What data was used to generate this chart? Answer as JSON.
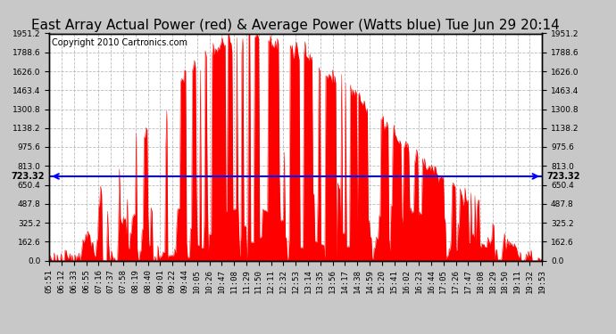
{
  "title": "East Array Actual Power (red) & Average Power (Watts blue) Tue Jun 29 20:14",
  "copyright_text": "Copyright 2010 Cartronics.com",
  "avg_power": 723.32,
  "y_ticks": [
    0.0,
    162.6,
    325.2,
    487.8,
    650.4,
    813.0,
    975.6,
    1138.2,
    1300.8,
    1463.4,
    1626.0,
    1788.6,
    1951.2
  ],
  "ylim": [
    0,
    1951.2
  ],
  "x_tick_labels": [
    "05:51",
    "06:12",
    "06:33",
    "06:55",
    "07:16",
    "07:37",
    "07:58",
    "08:19",
    "08:40",
    "09:01",
    "09:22",
    "09:44",
    "10:05",
    "10:26",
    "10:47",
    "11:08",
    "11:29",
    "11:50",
    "12:11",
    "12:32",
    "12:53",
    "13:14",
    "13:35",
    "13:56",
    "14:17",
    "14:38",
    "14:59",
    "15:20",
    "15:41",
    "16:02",
    "16:23",
    "16:44",
    "17:05",
    "17:26",
    "17:47",
    "18:08",
    "18:29",
    "18:50",
    "19:11",
    "19:32",
    "19:53"
  ],
  "fill_color": "#ff0000",
  "line_color": "blue",
  "background_color": "#c8c8c8",
  "plot_bg_color": "#ffffff",
  "grid_color": "#aaaaaa",
  "title_fontsize": 11,
  "copyright_fontsize": 7,
  "label_fontsize": 7,
  "tick_fontsize": 6.5
}
